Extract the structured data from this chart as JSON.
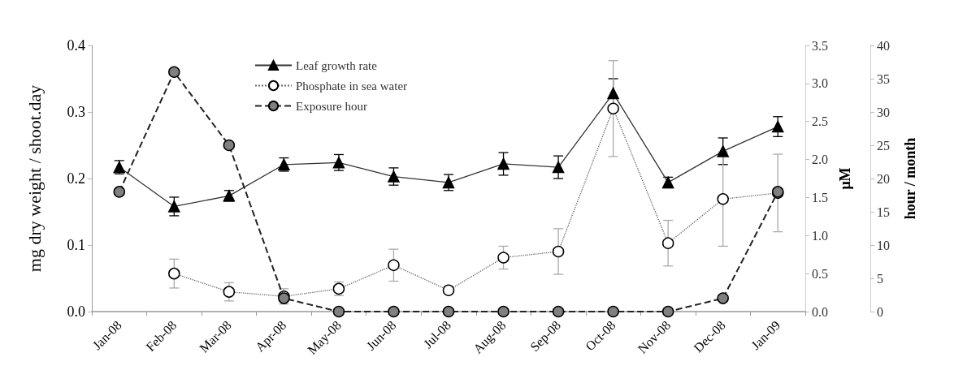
{
  "chart_data": {
    "type": "line",
    "ylabel": "mg dry weight / shoot.day",
    "y2label": "μM",
    "y3label": "hour / month",
    "categories": [
      "Jan-08",
      "Feb-08",
      "Mar-08",
      "Apr-08",
      "May-08",
      "Jun-08",
      "Jul-08",
      "Aug-08",
      "Sep-08",
      "Oct-08",
      "Nov-08",
      "Dec-08",
      "Jan-09"
    ],
    "series": [
      {
        "name": "Leaf growth rate",
        "color": "#000000",
        "marker": "triangle",
        "line_style": "solid",
        "values": [
          0.217,
          0.158,
          0.174,
          0.221,
          0.224,
          0.203,
          0.194,
          0.222,
          0.217,
          0.328,
          0.194,
          0.241,
          0.278
        ],
        "errors": [
          0.01,
          0.014,
          0.008,
          0.01,
          0.012,
          0.013,
          0.012,
          0.017,
          0.017,
          0.022,
          0.008,
          0.02,
          0.015
        ]
      },
      {
        "name": "Phosphate in sea water",
        "color": "#ffffff",
        "marker": "circle",
        "line_style": "dotted",
        "axis": "y2",
        "values": [
          null,
          0.5,
          0.26,
          0.2,
          0.3,
          0.61,
          0.28,
          0.71,
          0.79,
          2.67,
          0.9,
          1.48,
          1.56
        ],
        "errors": [
          null,
          0.19,
          0.12,
          0.1,
          0.09,
          0.21,
          0.05,
          0.15,
          0.3,
          0.63,
          0.3,
          0.62,
          0.51
        ]
      },
      {
        "name": "Exposure hour",
        "color": "#808080",
        "marker": "circle",
        "line_style": "dashed",
        "axis": "y3",
        "values": [
          18,
          36,
          25,
          2,
          0,
          0,
          0,
          0,
          0,
          0,
          0,
          2,
          18
        ]
      }
    ],
    "ylim": [
      0,
      0.4
    ],
    "yticks": [
      {
        "value": 0,
        "label": "0.0"
      },
      0.1,
      0.2,
      0.3,
      0.4
    ],
    "y2lim": [
      0,
      3.5
    ],
    "y2ticks": [
      {
        "value": 0,
        "label": "0.0"
      },
      0.5,
      {
        "value": 1,
        "label": "1.0"
      },
      1.5,
      {
        "value": 2,
        "label": "2.0"
      },
      2.5,
      {
        "value": 3,
        "label": "3.0"
      },
      3.5
    ],
    "y3lim": [
      0,
      40
    ],
    "y3ticks": [
      0,
      5,
      10,
      15,
      20,
      25,
      30,
      35,
      40
    ],
    "grid": false,
    "legend": "top left"
  }
}
